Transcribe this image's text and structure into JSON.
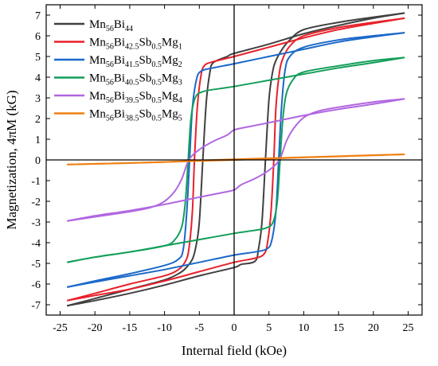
{
  "chart_data": {
    "type": "line",
    "title": "",
    "xlabel": "Internal field (kOe)",
    "ylabel": "Magnetization, 4πM (kG)",
    "xlim": [
      -27,
      27
    ],
    "ylim": [
      -7.5,
      7.5
    ],
    "xticks": [
      -25,
      -20,
      -15,
      -10,
      -5,
      0,
      5,
      10,
      15,
      20,
      25
    ],
    "yticks": [
      -7,
      -6,
      -5,
      -4,
      -3,
      -2,
      -1,
      0,
      1,
      2,
      3,
      4,
      5,
      6,
      7
    ],
    "grid": false,
    "legend_position": "top-left",
    "series": [
      {
        "name": "Mn56Bi44",
        "legend_parts": [
          [
            "Mn",
            ""
          ],
          [
            "56",
            "sub"
          ],
          [
            "Bi",
            ""
          ],
          [
            "44",
            "sub"
          ]
        ],
        "color": "#404040",
        "upper": [
          [
            -24,
            -7.05
          ],
          [
            -20,
            -6.7
          ],
          [
            -15,
            -6.25
          ],
          [
            -10,
            -5.8
          ],
          [
            -8,
            -5.5
          ],
          [
            -7,
            -5.25
          ],
          [
            -6,
            -4.8
          ],
          [
            -5.5,
            -4.2
          ],
          [
            -5,
            -3
          ],
          [
            -4.5,
            0
          ],
          [
            -4,
            2.8
          ],
          [
            -3.5,
            4.2
          ],
          [
            -3,
            4.7
          ],
          [
            -1,
            5
          ],
          [
            0,
            5.15
          ],
          [
            5,
            5.6
          ],
          [
            10,
            6.1
          ],
          [
            15,
            6.5
          ],
          [
            20,
            6.85
          ],
          [
            24.5,
            7.1
          ]
        ],
        "lower": [
          [
            24.5,
            7.1
          ],
          [
            20,
            6.9
          ],
          [
            15,
            6.65
          ],
          [
            10,
            6.3
          ],
          [
            8,
            5.8
          ],
          [
            7,
            5.4
          ],
          [
            6,
            4.8
          ],
          [
            5.5,
            4.2
          ],
          [
            5,
            2.9
          ],
          [
            4.5,
            0
          ],
          [
            4,
            -3
          ],
          [
            3.5,
            -4.3
          ],
          [
            3,
            -4.9
          ],
          [
            1,
            -5.05
          ],
          [
            0,
            -5.2
          ],
          [
            -5,
            -5.6
          ],
          [
            -10,
            -6.05
          ],
          [
            -15,
            -6.45
          ],
          [
            -20,
            -6.8
          ],
          [
            -24,
            -7.05
          ]
        ]
      },
      {
        "name": "Mn56Bi42.5Sb0.5Mg1",
        "legend_parts": [
          [
            "Mn",
            ""
          ],
          [
            "56",
            "sub"
          ],
          [
            "Bi",
            ""
          ],
          [
            "42.5",
            "sub"
          ],
          [
            "Sb",
            ""
          ],
          [
            "0.5",
            "sub"
          ],
          [
            "Mg",
            ""
          ],
          [
            "1",
            "sub"
          ]
        ],
        "color": "#e8212b",
        "upper": [
          [
            -24,
            -6.8
          ],
          [
            -20,
            -6.45
          ],
          [
            -15,
            -6.0
          ],
          [
            -10,
            -5.6
          ],
          [
            -8,
            -5.3
          ],
          [
            -7,
            -4.9
          ],
          [
            -6.5,
            -4.3
          ],
          [
            -6,
            -2.5
          ],
          [
            -5.7,
            0
          ],
          [
            -5.3,
            2.5
          ],
          [
            -4.8,
            4.0
          ],
          [
            -4.3,
            4.55
          ],
          [
            -3,
            4.75
          ],
          [
            0,
            5.0
          ],
          [
            5,
            5.45
          ],
          [
            10,
            5.9
          ],
          [
            15,
            6.3
          ],
          [
            20,
            6.6
          ],
          [
            24.5,
            6.85
          ]
        ],
        "lower": [
          [
            24.5,
            6.85
          ],
          [
            20,
            6.65
          ],
          [
            15,
            6.4
          ],
          [
            10,
            6.0
          ],
          [
            8,
            5.5
          ],
          [
            7,
            4.9
          ],
          [
            6.5,
            4.2
          ],
          [
            6,
            2.5
          ],
          [
            5.7,
            0
          ],
          [
            5.3,
            -2.5
          ],
          [
            4.8,
            -4.0
          ],
          [
            4.3,
            -4.55
          ],
          [
            3,
            -4.75
          ],
          [
            0,
            -4.95
          ],
          [
            -5,
            -5.4
          ],
          [
            -10,
            -5.85
          ],
          [
            -15,
            -6.25
          ],
          [
            -20,
            -6.55
          ],
          [
            -24,
            -6.8
          ]
        ]
      },
      {
        "name": "Mn56Bi41.5Sb0.5Mg2",
        "legend_parts": [
          [
            "Mn",
            ""
          ],
          [
            "56",
            "sub"
          ],
          [
            "Bi",
            ""
          ],
          [
            "41.5",
            "sub"
          ],
          [
            "Sb",
            ""
          ],
          [
            "0.5",
            "sub"
          ],
          [
            "Mg",
            ""
          ],
          [
            "2",
            "sub"
          ]
        ],
        "color": "#1a68c9",
        "upper": [
          [
            -24,
            -6.15
          ],
          [
            -20,
            -5.85
          ],
          [
            -15,
            -5.5
          ],
          [
            -10,
            -5.1
          ],
          [
            -8,
            -4.8
          ],
          [
            -7.3,
            -4.3
          ],
          [
            -6.8,
            -2.5
          ],
          [
            -6.4,
            0
          ],
          [
            -6,
            2.5
          ],
          [
            -5.4,
            3.9
          ],
          [
            -4.7,
            4.3
          ],
          [
            -3,
            4.45
          ],
          [
            0,
            4.65
          ],
          [
            5,
            5.0
          ],
          [
            10,
            5.35
          ],
          [
            15,
            5.7
          ],
          [
            20,
            5.95
          ],
          [
            24.5,
            6.15
          ]
        ],
        "lower": [
          [
            24.5,
            6.15
          ],
          [
            20,
            6.0
          ],
          [
            15,
            5.8
          ],
          [
            10,
            5.45
          ],
          [
            8,
            5.0
          ],
          [
            7.3,
            4.3
          ],
          [
            6.8,
            2.5
          ],
          [
            6.4,
            0
          ],
          [
            6,
            -2.5
          ],
          [
            5.4,
            -3.9
          ],
          [
            4.7,
            -4.3
          ],
          [
            3,
            -4.45
          ],
          [
            0,
            -4.6
          ],
          [
            -5,
            -4.95
          ],
          [
            -10,
            -5.3
          ],
          [
            -15,
            -5.6
          ],
          [
            -20,
            -5.9
          ],
          [
            -24,
            -6.15
          ]
        ]
      },
      {
        "name": "Mn56Bi40.5Sb0.5Mg3",
        "legend_parts": [
          [
            "Mn",
            ""
          ],
          [
            "56",
            "sub"
          ],
          [
            "Bi",
            ""
          ],
          [
            "40.5",
            "sub"
          ],
          [
            "Sb",
            ""
          ],
          [
            "0.5",
            "sub"
          ],
          [
            "Mg",
            ""
          ],
          [
            "3",
            "sub"
          ]
        ],
        "color": "#129e5a",
        "upper": [
          [
            -24,
            -4.95
          ],
          [
            -20,
            -4.7
          ],
          [
            -15,
            -4.45
          ],
          [
            -10,
            -4.15
          ],
          [
            -8.5,
            -3.85
          ],
          [
            -7.5,
            -3.2
          ],
          [
            -7,
            -2.0
          ],
          [
            -6.6,
            0
          ],
          [
            -6.2,
            2.0
          ],
          [
            -5.6,
            3.0
          ],
          [
            -4.5,
            3.3
          ],
          [
            -2,
            3.45
          ],
          [
            0,
            3.55
          ],
          [
            5,
            3.85
          ],
          [
            10,
            4.15
          ],
          [
            15,
            4.45
          ],
          [
            20,
            4.7
          ],
          [
            24.5,
            4.95
          ]
        ],
        "lower": [
          [
            24.5,
            4.95
          ],
          [
            20,
            4.8
          ],
          [
            15,
            4.55
          ],
          [
            10,
            4.25
          ],
          [
            8.5,
            3.9
          ],
          [
            7.5,
            3.2
          ],
          [
            7,
            2.0
          ],
          [
            6.6,
            0
          ],
          [
            6.2,
            -2.0
          ],
          [
            5.6,
            -3.0
          ],
          [
            4.5,
            -3.3
          ],
          [
            2,
            -3.45
          ],
          [
            0,
            -3.55
          ],
          [
            -5,
            -3.85
          ],
          [
            -10,
            -4.15
          ],
          [
            -15,
            -4.45
          ],
          [
            -20,
            -4.7
          ],
          [
            -24,
            -4.95
          ]
        ]
      },
      {
        "name": "Mn56Bi39.5Sb0.5Mg4",
        "legend_parts": [
          [
            "Mn",
            ""
          ],
          [
            "56",
            "sub"
          ],
          [
            "Bi",
            ""
          ],
          [
            "39.5",
            "sub"
          ],
          [
            "Sb",
            ""
          ],
          [
            "0.5",
            "sub"
          ],
          [
            "Mg",
            ""
          ],
          [
            "4",
            "sub"
          ]
        ],
        "color": "#b067e0",
        "upper": [
          [
            -24,
            -2.95
          ],
          [
            -20,
            -2.75
          ],
          [
            -15,
            -2.5
          ],
          [
            -12,
            -2.3
          ],
          [
            -10,
            -2.0
          ],
          [
            -8.5,
            -1.5
          ],
          [
            -7.5,
            -0.9
          ],
          [
            -6.5,
            0
          ],
          [
            -5,
            0.5
          ],
          [
            -3,
            0.9
          ],
          [
            -1,
            1.2
          ],
          [
            0,
            1.45
          ],
          [
            2,
            1.6
          ],
          [
            5,
            1.8
          ],
          [
            10,
            2.15
          ],
          [
            15,
            2.45
          ],
          [
            20,
            2.7
          ],
          [
            24.5,
            2.95
          ]
        ],
        "lower": [
          [
            24.5,
            2.95
          ],
          [
            20,
            2.8
          ],
          [
            15,
            2.55
          ],
          [
            12,
            2.35
          ],
          [
            10,
            2.05
          ],
          [
            8.5,
            1.5
          ],
          [
            7.5,
            0.9
          ],
          [
            6.5,
            0
          ],
          [
            5,
            -0.5
          ],
          [
            3,
            -0.9
          ],
          [
            1,
            -1.2
          ],
          [
            0,
            -1.45
          ],
          [
            -2,
            -1.6
          ],
          [
            -5,
            -1.8
          ],
          [
            -10,
            -2.15
          ],
          [
            -15,
            -2.45
          ],
          [
            -20,
            -2.7
          ],
          [
            -24,
            -2.95
          ]
        ]
      },
      {
        "name": "Mn56Bi38.5Sb0.5Mg5",
        "legend_parts": [
          [
            "Mn",
            ""
          ],
          [
            "56",
            "sub"
          ],
          [
            "Bi",
            ""
          ],
          [
            "38.5",
            "sub"
          ],
          [
            "Sb",
            ""
          ],
          [
            "0.5",
            "sub"
          ],
          [
            "Mg",
            ""
          ],
          [
            "5",
            "sub"
          ]
        ],
        "color": "#f07f12",
        "upper": [
          [
            -24,
            -0.22
          ],
          [
            -15,
            -0.15
          ],
          [
            -10,
            -0.1
          ],
          [
            -5,
            -0.03
          ],
          [
            0,
            0.03
          ],
          [
            5,
            0.08
          ],
          [
            10,
            0.13
          ],
          [
            15,
            0.18
          ],
          [
            20,
            0.23
          ],
          [
            24.5,
            0.27
          ]
        ],
        "lower": [
          [
            24.5,
            0.27
          ],
          [
            20,
            0.22
          ],
          [
            15,
            0.17
          ],
          [
            10,
            0.12
          ],
          [
            5,
            0.06
          ],
          [
            0,
            0.0
          ],
          [
            -5,
            -0.05
          ],
          [
            -10,
            -0.1
          ],
          [
            -15,
            -0.15
          ],
          [
            -24,
            -0.22
          ]
        ]
      }
    ]
  }
}
